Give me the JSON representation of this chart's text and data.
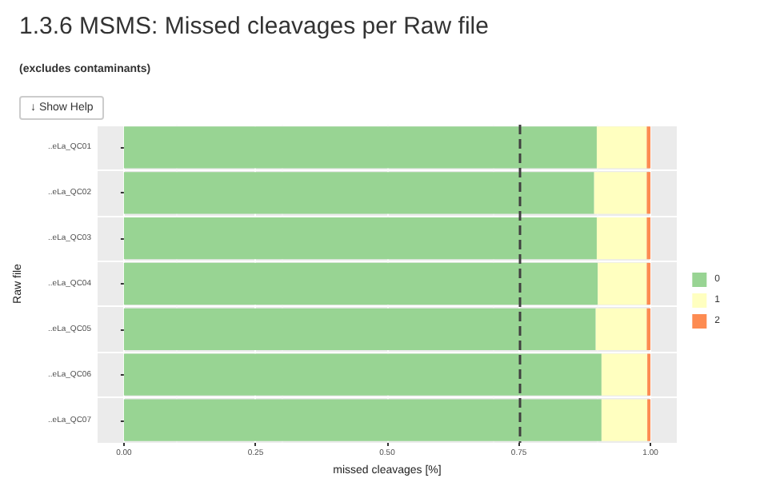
{
  "chart_data": {
    "type": "bar",
    "orientation": "horizontal",
    "stacked": true,
    "title": "1.3.6 MSMS: Missed cleavages per Raw file",
    "subtitle": "(excludes contaminants)",
    "annotations": [
      "↓ Show Help"
    ],
    "xlabel": "missed cleavages [%]",
    "ylabel": "Raw file",
    "categories": [
      "..eLa_QC01",
      "..eLa_QC02",
      "..eLa_QC03",
      "..eLa_QC04",
      "..eLa_QC05",
      "..eLa_QC06",
      "..eLa_QC07"
    ],
    "series": [
      {
        "name": "0",
        "color": "#98d493",
        "values": [
          0.898,
          0.893,
          0.898,
          0.9,
          0.896,
          0.907,
          0.907
        ]
      },
      {
        "name": "1",
        "color": "#ffffc0",
        "values": [
          0.095,
          0.1,
          0.095,
          0.093,
          0.097,
          0.087,
          0.087
        ]
      },
      {
        "name": "2",
        "color": "#fd8b51",
        "values": [
          0.007,
          0.007,
          0.007,
          0.007,
          0.007,
          0.006,
          0.006
        ]
      }
    ],
    "xlim": [
      -0.05,
      1.05
    ],
    "xticks": [
      {
        "value": 0,
        "label": "0.00"
      },
      {
        "value": 0.25,
        "label": "0.25"
      },
      {
        "value": 0.5,
        "label": "0.50"
      },
      {
        "value": 0.75,
        "label": "0.75"
      },
      {
        "value": 1,
        "label": "1.00"
      }
    ],
    "ref_lines": [
      {
        "axis": "x",
        "value": 0.75,
        "color": "#404040",
        "line_style": "dashed"
      }
    ],
    "grid": true,
    "legend": "right"
  }
}
